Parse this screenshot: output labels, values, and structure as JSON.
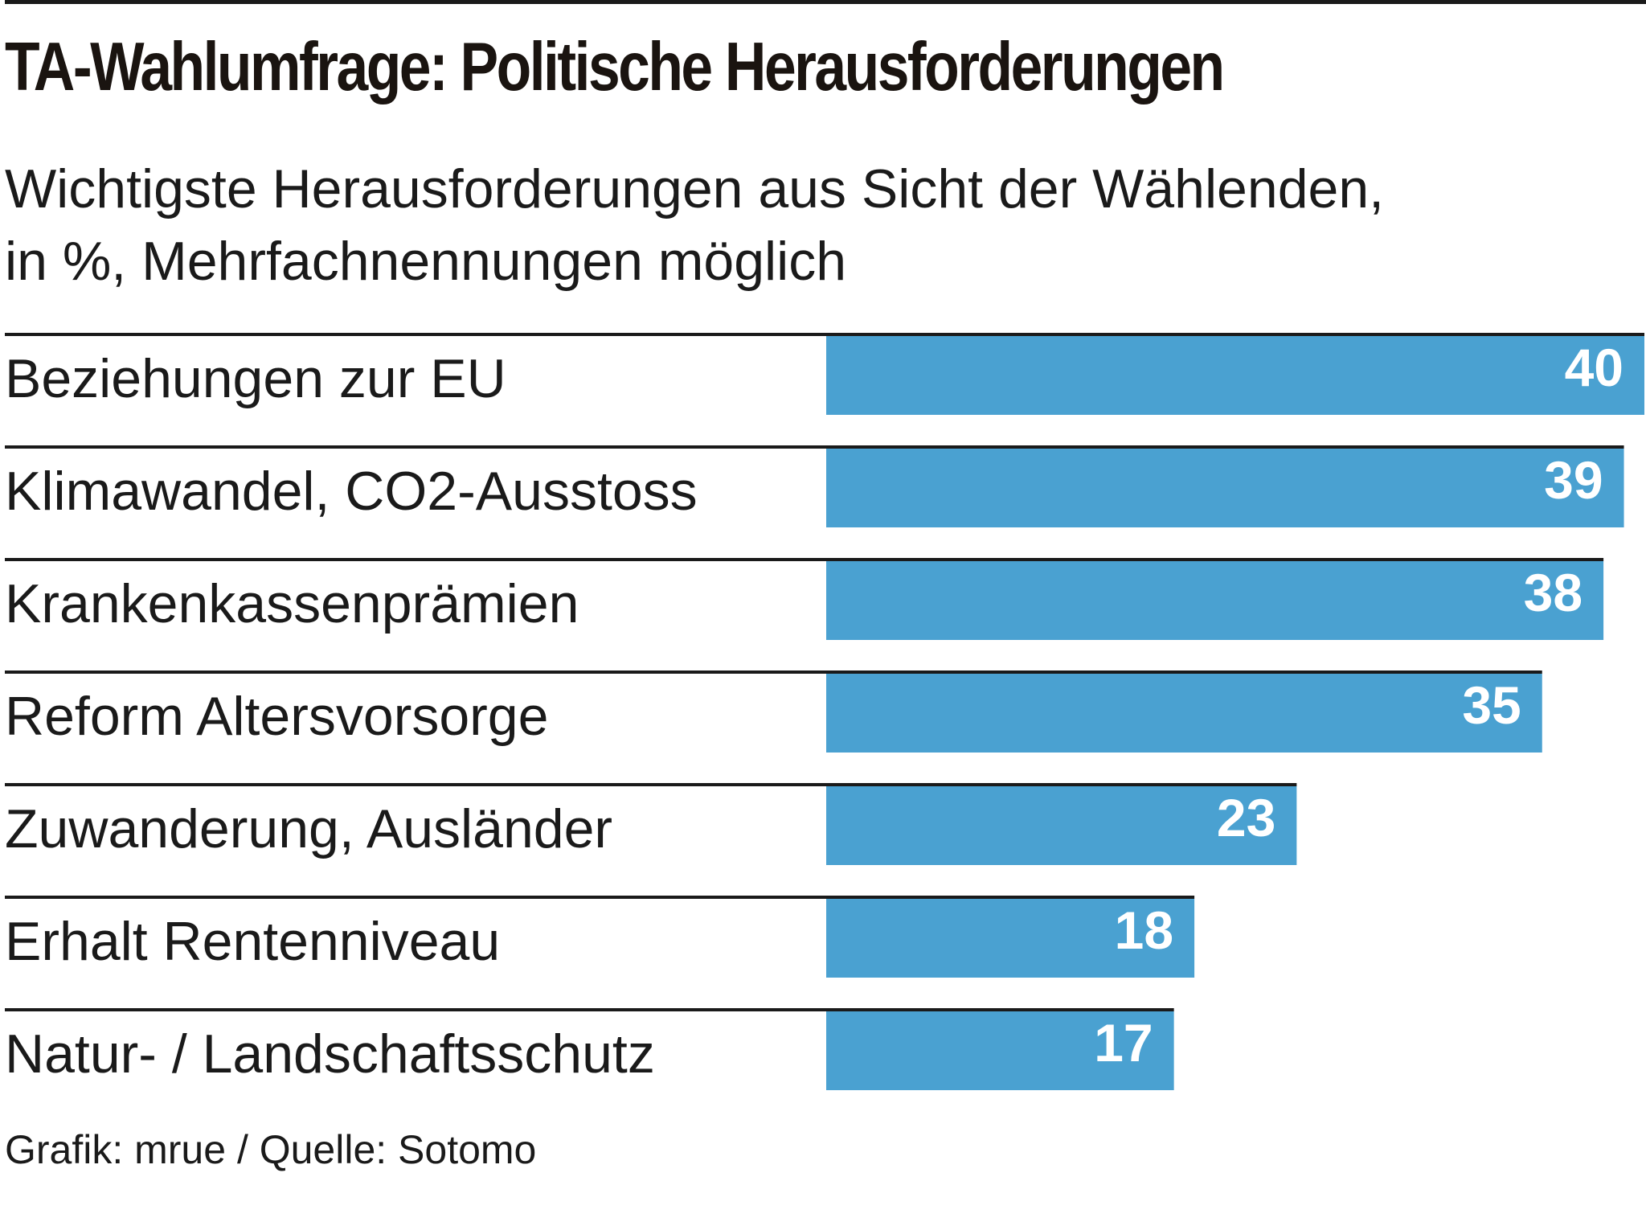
{
  "header": {
    "title": "TA-Wahlumfrage: Politische Herausforderungen",
    "subtitle_line1": "Wichtigste Herausforderungen aus Sicht der Wählenden,",
    "subtitle_line2": "in %, Mehrfachnennungen möglich"
  },
  "chart_data": {
    "type": "bar",
    "orientation": "horizontal",
    "title": "TA-Wahlumfrage: Politische Herausforderungen",
    "subtitle": "Wichtigste Herausforderungen aus Sicht der Wählenden, in %, Mehrfachnennungen möglich",
    "categories": [
      "Beziehungen zur EU",
      "Klimawandel, CO2-Ausstoss",
      "Krankenkassenprämien",
      "Reform Altersvorsorge",
      "Zuwanderung, Ausländer",
      "Erhalt Rentenniveau",
      "Natur- / Landschaftsschutz"
    ],
    "values": [
      40,
      39,
      38,
      35,
      23,
      18,
      17
    ],
    "xlim": [
      0,
      40
    ],
    "xlabel": "",
    "ylabel": "",
    "grid": false,
    "legend": "none",
    "bar_color": "#4aa1d1",
    "value_label_color": "#ffffff"
  },
  "footer": {
    "source": "Grafik: mrue / Quelle: Sotomo"
  }
}
